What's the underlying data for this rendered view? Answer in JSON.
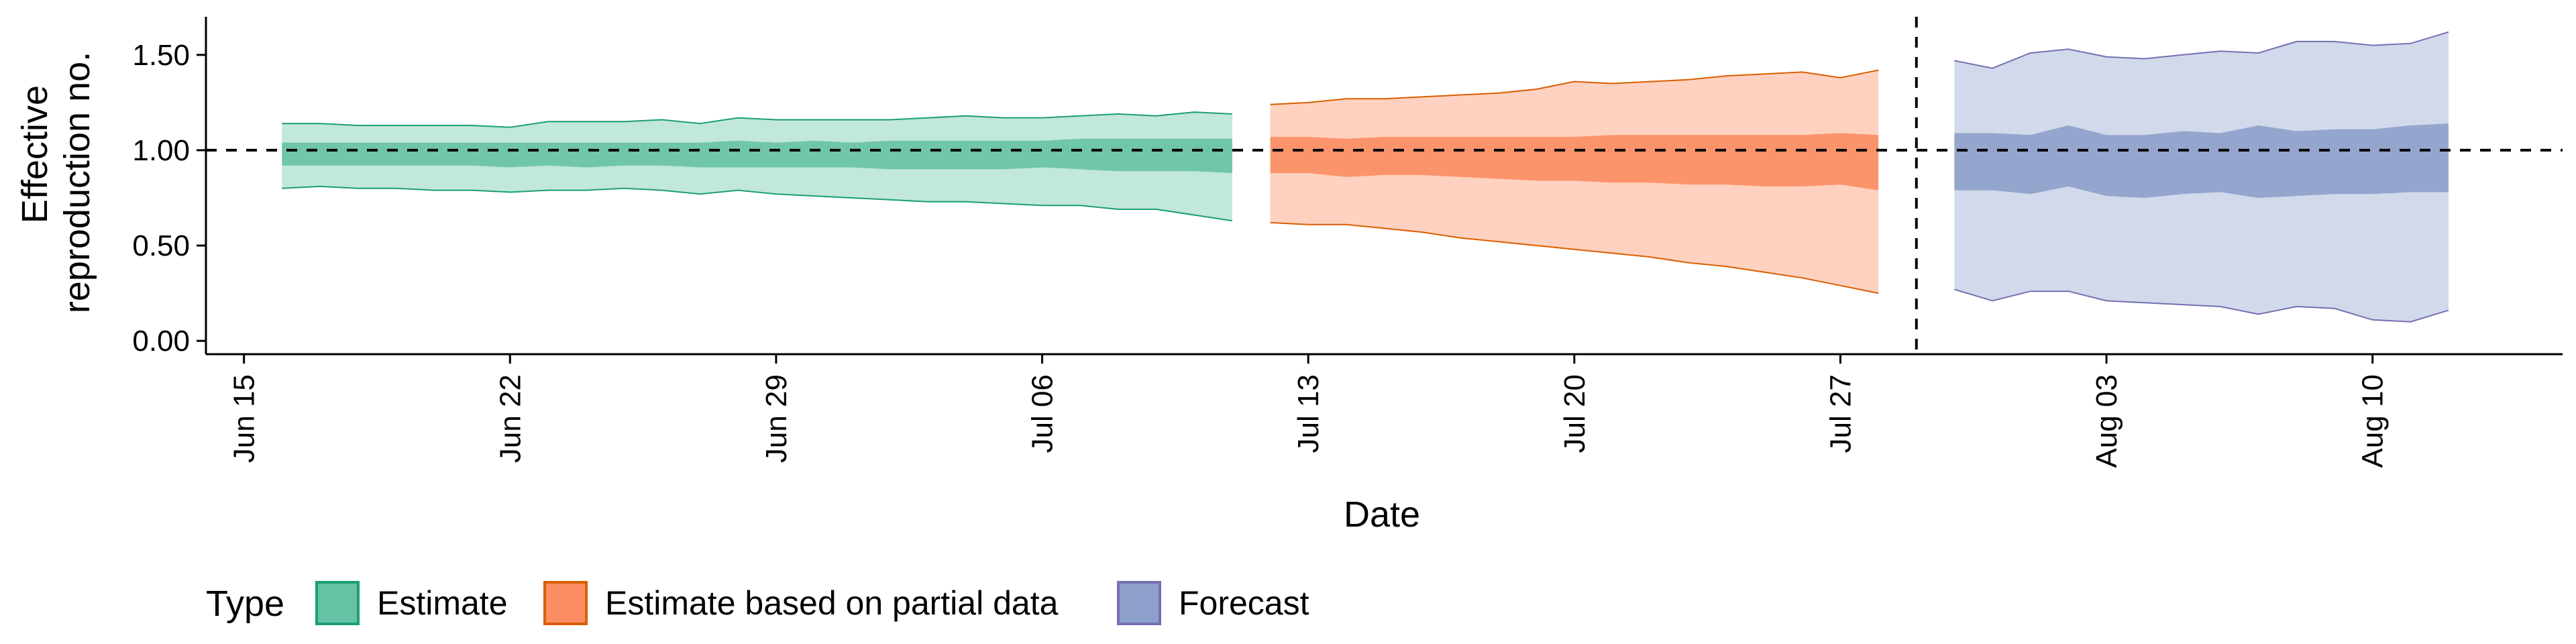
{
  "chart_data": {
    "type": "area",
    "title": "",
    "xlabel": "Date",
    "ylabel_lines": [
      "Effective",
      "reproduction no."
    ],
    "x_ticks": [
      "Jun 15",
      "Jun 22",
      "Jun 29",
      "Jul 06",
      "Jul 13",
      "Jul 20",
      "Jul 27",
      "Aug 03",
      "Aug 10"
    ],
    "x_tick_dates": [
      "2020-06-15",
      "2020-06-22",
      "2020-06-29",
      "2020-07-06",
      "2020-07-13",
      "2020-07-20",
      "2020-07-27",
      "2020-08-03",
      "2020-08-10"
    ],
    "y_ticks": [
      "0.00",
      "0.50",
      "1.00",
      "1.50"
    ],
    "ylim": [
      -0.07,
      1.7
    ],
    "xlim": [
      "2020-06-14",
      "2020-08-15"
    ],
    "reference_hline": 1.0,
    "reference_vline": "2020-07-29",
    "legend": {
      "title": "Type",
      "position": "bottom",
      "entries": [
        "Estimate",
        "Estimate based on partial data",
        "Forecast"
      ]
    },
    "series": [
      {
        "name": "Estimate",
        "fill_color": "#66c2a5",
        "stroke_color": "#1b9e77",
        "start_date": "2020-06-16",
        "end_date": "2020-07-11",
        "x_dates": [
          "2020-06-16",
          "2020-06-17",
          "2020-06-18",
          "2020-06-19",
          "2020-06-20",
          "2020-06-21",
          "2020-06-22",
          "2020-06-23",
          "2020-06-24",
          "2020-06-25",
          "2020-06-26",
          "2020-06-27",
          "2020-06-28",
          "2020-06-29",
          "2020-06-30",
          "2020-07-01",
          "2020-07-02",
          "2020-07-03",
          "2020-07-04",
          "2020-07-05",
          "2020-07-06",
          "2020-07-07",
          "2020-07-08",
          "2020-07-09",
          "2020-07-10",
          "2020-07-11"
        ],
        "upper_90": [
          1.14,
          1.14,
          1.13,
          1.13,
          1.13,
          1.13,
          1.12,
          1.15,
          1.15,
          1.15,
          1.16,
          1.14,
          1.17,
          1.16,
          1.16,
          1.16,
          1.16,
          1.17,
          1.18,
          1.17,
          1.17,
          1.18,
          1.19,
          1.18,
          1.2,
          1.19
        ],
        "upper_50": [
          1.04,
          1.04,
          1.04,
          1.04,
          1.04,
          1.04,
          1.04,
          1.04,
          1.04,
          1.04,
          1.04,
          1.04,
          1.05,
          1.04,
          1.05,
          1.04,
          1.05,
          1.05,
          1.05,
          1.05,
          1.05,
          1.06,
          1.06,
          1.06,
          1.06,
          1.06
        ],
        "lower_50": [
          0.92,
          0.92,
          0.92,
          0.92,
          0.92,
          0.92,
          0.91,
          0.92,
          0.91,
          0.92,
          0.92,
          0.91,
          0.91,
          0.91,
          0.91,
          0.91,
          0.9,
          0.9,
          0.9,
          0.9,
          0.91,
          0.9,
          0.89,
          0.89,
          0.89,
          0.88
        ],
        "lower_90": [
          0.8,
          0.81,
          0.8,
          0.8,
          0.79,
          0.79,
          0.78,
          0.79,
          0.79,
          0.8,
          0.79,
          0.77,
          0.79,
          0.77,
          0.76,
          0.75,
          0.74,
          0.73,
          0.73,
          0.72,
          0.71,
          0.71,
          0.69,
          0.69,
          0.66,
          0.63
        ]
      },
      {
        "name": "Estimate based on partial data",
        "fill_color": "#fc8d62",
        "stroke_color": "#d95f02",
        "start_date": "2020-07-12",
        "end_date": "2020-07-28",
        "x_dates": [
          "2020-07-12",
          "2020-07-13",
          "2020-07-14",
          "2020-07-15",
          "2020-07-16",
          "2020-07-17",
          "2020-07-18",
          "2020-07-19",
          "2020-07-20",
          "2020-07-21",
          "2020-07-22",
          "2020-07-23",
          "2020-07-24",
          "2020-07-25",
          "2020-07-26",
          "2020-07-27",
          "2020-07-28"
        ],
        "upper_90": [
          1.24,
          1.25,
          1.27,
          1.27,
          1.28,
          1.29,
          1.3,
          1.32,
          1.36,
          1.35,
          1.36,
          1.37,
          1.39,
          1.4,
          1.41,
          1.38,
          1.42
        ],
        "upper_50": [
          1.07,
          1.07,
          1.06,
          1.07,
          1.07,
          1.07,
          1.07,
          1.07,
          1.07,
          1.08,
          1.08,
          1.08,
          1.08,
          1.08,
          1.08,
          1.09,
          1.08
        ],
        "lower_50": [
          0.88,
          0.88,
          0.86,
          0.87,
          0.87,
          0.86,
          0.85,
          0.84,
          0.84,
          0.83,
          0.83,
          0.82,
          0.82,
          0.81,
          0.81,
          0.82,
          0.79
        ],
        "lower_90": [
          0.62,
          0.61,
          0.61,
          0.59,
          0.57,
          0.54,
          0.52,
          0.5,
          0.48,
          0.46,
          0.44,
          0.41,
          0.39,
          0.36,
          0.33,
          0.29,
          0.25
        ]
      },
      {
        "name": "Forecast",
        "fill_color": "#8da0cb",
        "stroke_color": "#7570b3",
        "start_date": "2020-07-30",
        "end_date": "2020-08-12",
        "x_dates": [
          "2020-07-30",
          "2020-07-31",
          "2020-08-01",
          "2020-08-02",
          "2020-08-03",
          "2020-08-04",
          "2020-08-05",
          "2020-08-06",
          "2020-08-07",
          "2020-08-08",
          "2020-08-09",
          "2020-08-10",
          "2020-08-11",
          "2020-08-12"
        ],
        "upper_90": [
          1.47,
          1.43,
          1.51,
          1.53,
          1.49,
          1.48,
          1.5,
          1.52,
          1.51,
          1.57,
          1.57,
          1.55,
          1.56,
          1.62
        ],
        "upper_50": [
          1.09,
          1.09,
          1.08,
          1.13,
          1.08,
          1.08,
          1.1,
          1.09,
          1.13,
          1.1,
          1.11,
          1.11,
          1.13,
          1.14
        ],
        "lower_50": [
          0.79,
          0.79,
          0.77,
          0.81,
          0.76,
          0.75,
          0.77,
          0.78,
          0.75,
          0.76,
          0.77,
          0.77,
          0.78,
          0.78
        ],
        "lower_90": [
          0.27,
          0.21,
          0.26,
          0.26,
          0.21,
          0.2,
          0.19,
          0.18,
          0.14,
          0.18,
          0.17,
          0.11,
          0.1,
          0.16
        ]
      }
    ]
  }
}
